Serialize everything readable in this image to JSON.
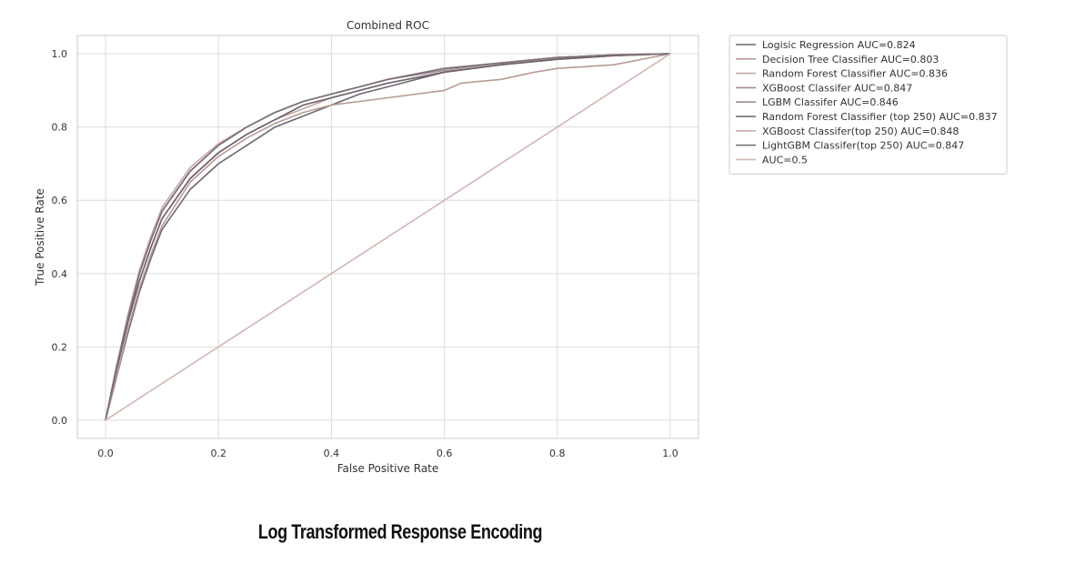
{
  "chart_data": {
    "type": "line",
    "title": "Combined ROC",
    "xlabel": "False Positive Rate",
    "ylabel": "True Positive Rate",
    "xlim": [
      -0.05,
      1.05
    ],
    "ylim": [
      -0.05,
      1.05
    ],
    "xticks": [
      "0.0",
      "0.2",
      "0.4",
      "0.6",
      "0.8",
      "1.0"
    ],
    "yticks": [
      "0.0",
      "0.2",
      "0.4",
      "0.6",
      "0.8",
      "1.0"
    ],
    "grid": true,
    "legend_position": "outside-right",
    "series": [
      {
        "name": "Logisic Regression AUC=0.824",
        "color": "#6e6672",
        "x": [
          0,
          0.02,
          0.04,
          0.06,
          0.08,
          0.1,
          0.15,
          0.2,
          0.25,
          0.3,
          0.35,
          0.4,
          0.45,
          0.5,
          0.6,
          0.7,
          0.8,
          0.9,
          1.0
        ],
        "y": [
          0,
          0.12,
          0.24,
          0.35,
          0.44,
          0.52,
          0.63,
          0.7,
          0.75,
          0.8,
          0.83,
          0.86,
          0.89,
          0.91,
          0.95,
          0.97,
          0.985,
          0.995,
          1.0
        ]
      },
      {
        "name": "Decision Tree Classifier AUC=0.803",
        "color": "#b99a93",
        "x": [
          0,
          0.02,
          0.04,
          0.06,
          0.08,
          0.1,
          0.15,
          0.2,
          0.25,
          0.3,
          0.35,
          0.4,
          0.45,
          0.5,
          0.6,
          0.63,
          0.7,
          0.76,
          0.8,
          0.9,
          1.0
        ],
        "y": [
          0,
          0.12,
          0.25,
          0.36,
          0.45,
          0.53,
          0.65,
          0.72,
          0.77,
          0.81,
          0.84,
          0.86,
          0.87,
          0.88,
          0.9,
          0.92,
          0.93,
          0.95,
          0.96,
          0.97,
          1.0
        ]
      },
      {
        "name": "Random Forest Classifier AUC=0.836",
        "color": "#c4a6a4",
        "x": [
          0,
          0.02,
          0.04,
          0.06,
          0.08,
          0.1,
          0.15,
          0.2,
          0.25,
          0.3,
          0.35,
          0.4,
          0.45,
          0.5,
          0.6,
          0.7,
          0.8,
          0.9,
          1.0
        ],
        "y": [
          0,
          0.14,
          0.27,
          0.38,
          0.47,
          0.55,
          0.66,
          0.73,
          0.78,
          0.82,
          0.85,
          0.88,
          0.9,
          0.92,
          0.95,
          0.97,
          0.985,
          0.995,
          1.0
        ]
      },
      {
        "name": "XGBoost Classifer AUC=0.847",
        "color": "#a08a86",
        "x": [
          0,
          0.02,
          0.04,
          0.06,
          0.08,
          0.1,
          0.15,
          0.2,
          0.25,
          0.3,
          0.35,
          0.4,
          0.45,
          0.5,
          0.6,
          0.7,
          0.8,
          0.9,
          1.0
        ],
        "y": [
          0,
          0.15,
          0.29,
          0.4,
          0.49,
          0.57,
          0.68,
          0.75,
          0.8,
          0.84,
          0.87,
          0.89,
          0.91,
          0.93,
          0.96,
          0.975,
          0.99,
          0.997,
          1.0
        ]
      },
      {
        "name": "LGBM Classifer AUC=0.846",
        "color": "#9c8f92",
        "x": [
          0,
          0.02,
          0.04,
          0.06,
          0.08,
          0.1,
          0.15,
          0.2,
          0.25,
          0.3,
          0.35,
          0.4,
          0.45,
          0.5,
          0.6,
          0.7,
          0.8,
          0.9,
          1.0
        ],
        "y": [
          0,
          0.15,
          0.28,
          0.4,
          0.49,
          0.57,
          0.68,
          0.75,
          0.8,
          0.84,
          0.87,
          0.89,
          0.91,
          0.93,
          0.955,
          0.975,
          0.99,
          0.997,
          1.0
        ]
      },
      {
        "name": "Random Forest Classifier (top 250) AUC=0.837",
        "color": "#6b5f6a",
        "x": [
          0,
          0.02,
          0.04,
          0.06,
          0.08,
          0.1,
          0.15,
          0.2,
          0.25,
          0.3,
          0.35,
          0.4,
          0.45,
          0.5,
          0.6,
          0.7,
          0.8,
          0.9,
          1.0
        ],
        "y": [
          0,
          0.14,
          0.27,
          0.38,
          0.47,
          0.55,
          0.66,
          0.73,
          0.78,
          0.82,
          0.86,
          0.88,
          0.9,
          0.92,
          0.95,
          0.97,
          0.985,
          0.995,
          1.0
        ]
      },
      {
        "name": "XGBoost Classifer(top 250) AUC=0.848",
        "color": "#c9aaa6",
        "x": [
          0,
          0.02,
          0.04,
          0.06,
          0.08,
          0.1,
          0.15,
          0.2,
          0.25,
          0.3,
          0.35,
          0.4,
          0.45,
          0.5,
          0.6,
          0.7,
          0.8,
          0.9,
          1.0
        ],
        "y": [
          0,
          0.15,
          0.29,
          0.41,
          0.5,
          0.58,
          0.69,
          0.755,
          0.8,
          0.84,
          0.87,
          0.89,
          0.91,
          0.93,
          0.96,
          0.975,
          0.99,
          0.997,
          1.0
        ]
      },
      {
        "name": "LightGBM Classifer(top 250) AUC=0.847",
        "color": "#7b7078",
        "x": [
          0,
          0.02,
          0.04,
          0.06,
          0.08,
          0.1,
          0.15,
          0.2,
          0.25,
          0.3,
          0.35,
          0.4,
          0.45,
          0.5,
          0.6,
          0.7,
          0.8,
          0.9,
          1.0
        ],
        "y": [
          0,
          0.15,
          0.28,
          0.4,
          0.49,
          0.57,
          0.68,
          0.75,
          0.8,
          0.84,
          0.87,
          0.89,
          0.91,
          0.93,
          0.96,
          0.975,
          0.99,
          0.997,
          1.0
        ]
      },
      {
        "name": "AUC=0.5",
        "color": "#d2b8b4",
        "x": [
          0,
          1.0
        ],
        "y": [
          0,
          1.0
        ]
      }
    ]
  },
  "caption": "Log Transformed Response Encoding"
}
